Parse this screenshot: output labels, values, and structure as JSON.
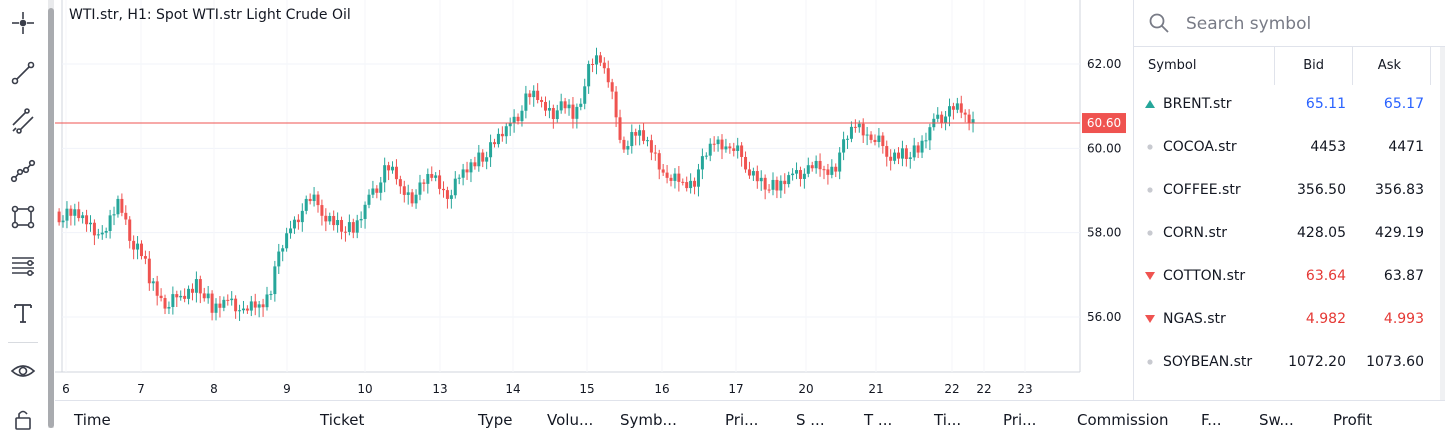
{
  "chart": {
    "title": "WTI.str, H1: Spot WTI.str Light Crude Oil",
    "current_price_label": "60.60",
    "y_ticks": [
      "62.00",
      "60.00",
      "58.00",
      "56.00"
    ],
    "x_ticks": [
      "6",
      "7",
      "8",
      "9",
      "10",
      "13",
      "14",
      "15",
      "16",
      "17",
      "20",
      "21",
      "22",
      "22",
      "23"
    ],
    "up_color": "#26a69a",
    "down_color": "#ef5350",
    "price_line_color": "#ef5350"
  },
  "chart_data": {
    "type": "candlestick",
    "title": "WTI.str, H1: Spot WTI.str Light Crude Oil",
    "ylim": [
      54.5,
      63.5
    ],
    "current_price": 60.6,
    "close_approx": [
      58.4,
      58.2,
      58.0,
      58.8,
      57.6,
      56.8,
      56.2,
      56.5,
      56.9,
      56.1,
      56.4,
      56.2,
      56.3,
      57.2,
      58.1,
      58.8,
      58.4,
      58.3,
      58.0,
      58.9,
      59.6,
      59.1,
      58.9,
      59.3,
      58.8,
      59.5,
      59.9,
      60.1,
      60.6,
      61.3,
      61.1,
      60.9,
      60.7,
      62.0,
      61.9,
      60.2,
      60.3,
      59.9,
      59.3,
      59.2,
      59.5,
      60.1,
      60.0,
      59.5,
      59.3,
      59.0,
      59.4,
      59.6,
      59.5,
      59.9,
      60.5,
      60.2,
      59.8,
      60.0,
      59.9,
      60.7,
      61.0,
      60.8,
      60.7
    ],
    "x_categories": [
      "6",
      "7",
      "8",
      "9",
      "10",
      "13",
      "14",
      "15",
      "16",
      "17",
      "20",
      "21",
      "22",
      "22",
      "23"
    ]
  },
  "search": {
    "placeholder": "Search symbol"
  },
  "watchlist": {
    "headers": {
      "symbol": "Symbol",
      "bid": "Bid",
      "ask": "Ask"
    },
    "rows": [
      {
        "symbol": "BRENT.str",
        "bid": "65.11",
        "ask": "65.17",
        "trend": "up",
        "bid_color": "#2962ff",
        "ask_color": "#2962ff"
      },
      {
        "symbol": "COCOA.str",
        "bid": "4453",
        "ask": "4471",
        "trend": "none",
        "bid_color": "#131722",
        "ask_color": "#131722"
      },
      {
        "symbol": "COFFEE.str",
        "bid": "356.50",
        "ask": "356.83",
        "trend": "none",
        "bid_color": "#131722",
        "ask_color": "#131722"
      },
      {
        "symbol": "CORN.str",
        "bid": "428.05",
        "ask": "429.19",
        "trend": "none",
        "bid_color": "#131722",
        "ask_color": "#131722"
      },
      {
        "symbol": "COTTON.str",
        "bid": "63.64",
        "ask": "63.87",
        "trend": "down",
        "bid_color": "#e53935",
        "ask_color": "#131722"
      },
      {
        "symbol": "NGAS.str",
        "bid": "4.982",
        "ask": "4.993",
        "trend": "down",
        "bid_color": "#e53935",
        "ask_color": "#e53935"
      },
      {
        "symbol": "SOYBEAN.str",
        "bid": "1072.20",
        "ask": "1073.60",
        "trend": "none",
        "bid_color": "#131722",
        "ask_color": "#131722"
      }
    ]
  },
  "orders_table": {
    "columns": [
      "Time",
      "Ticket",
      "Type",
      "Volu...",
      "Symb...",
      "Pri...",
      "S ...",
      "T ...",
      "Ti...",
      "Pri...",
      "Commission",
      "F...",
      "Sw...",
      "Profit"
    ]
  },
  "toolbar": {
    "tools": [
      "crosshair-icon",
      "trend-line-icon",
      "parallel-channel-icon",
      "polyline-icon",
      "rectangle-icon",
      "fib-levels-icon",
      "text-icon",
      "eye-icon",
      "lock-icon"
    ]
  }
}
